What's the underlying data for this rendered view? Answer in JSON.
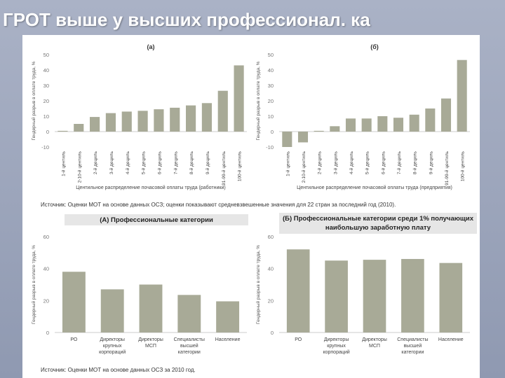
{
  "slide": {
    "title": "ГРОТ выше у высших профессионал. ка"
  },
  "sources": {
    "top": "Источник: Оценки МОТ на основе данных ОСЗ; оценки показывают средневзвешенные значения для 22 стран за последний год (2010).",
    "bottom": "Источник: Оценки МОТ на основе данных ОСЗ за 2010 год."
  },
  "headers": {
    "bottom_left": "(А) Профессиональные категории",
    "bottom_right": "(Б) Профессиональные категории среди 1% получающих наибольшую заработную плату"
  },
  "colors": {
    "bar": "#a8aa97",
    "bar_dark": "#9c9e8b",
    "axis": "#666666"
  },
  "chart_data": [
    {
      "type": "bar",
      "title": "(а)",
      "ylabel": "Гендерный разрыв в оплате труда, %",
      "xlabel": "Центильное распределение почасовой оплаты труда (работники)",
      "ylim": [
        -10,
        50
      ],
      "yticks": [
        -10,
        0,
        10,
        20,
        30,
        40,
        50
      ],
      "categories": [
        "1-й центиль",
        "2-10-й центиль",
        "2-й дециль",
        "3-й дециль",
        "4-й дециль",
        "5-й дециль",
        "6-й дециль",
        "7-й дециль",
        "8-й дециль",
        "9-й дециль",
        "91-99-й центиль",
        "100-й центиль"
      ],
      "values": [
        0.5,
        5,
        9.5,
        12,
        13,
        13.5,
        14.5,
        15.5,
        17,
        18.5,
        26.5,
        43
      ]
    },
    {
      "type": "bar",
      "title": "(б)",
      "ylabel": "Гендерный разрыв в оплате труда, %",
      "xlabel": "Центильное распределение почасовой оплаты труда (предприятия)",
      "ylim": [
        -10,
        50
      ],
      "yticks": [
        -10,
        0,
        10,
        20,
        30,
        40,
        50
      ],
      "categories": [
        "1-й центиль",
        "2-10-й центиль",
        "2-й дециль",
        "3-й дециль",
        "4-й дециль",
        "5-й дециль",
        "6-й дециль",
        "7-й дециль",
        "8-й дециль",
        "9-й дециль",
        "91-99-й центиль",
        "100-й центиль"
      ],
      "values": [
        -10,
        -7,
        0.5,
        3.5,
        8.5,
        8.5,
        10,
        9,
        11,
        15,
        21.5,
        46.5
      ]
    },
    {
      "type": "bar",
      "title": "(А) Профессиональные категории",
      "ylabel": "Гендерный разрыв в оплате труда, %",
      "xlabel": "",
      "ylim": [
        0,
        60
      ],
      "yticks": [
        0,
        20,
        40,
        60
      ],
      "categories": [
        "РО",
        "Директоры крупных корпораций",
        "Директоры МСП",
        "Специалисты высшей категории",
        "Население"
      ],
      "values": [
        38,
        27,
        30,
        23.5,
        19.5
      ]
    },
    {
      "type": "bar",
      "title": "(Б) Профессиональные категории среди 1% получающих наибольшую заработную плату",
      "ylabel": "Гендерный разрыв в оплате труда, %",
      "xlabel": "",
      "ylim": [
        0,
        60
      ],
      "yticks": [
        0,
        20,
        40,
        60
      ],
      "categories": [
        "РО",
        "Директоры крупных корпораций",
        "Директоры МСП",
        "Специалисты высшей категории",
        "Население"
      ],
      "values": [
        52,
        45,
        45.5,
        46,
        43.5
      ]
    }
  ]
}
